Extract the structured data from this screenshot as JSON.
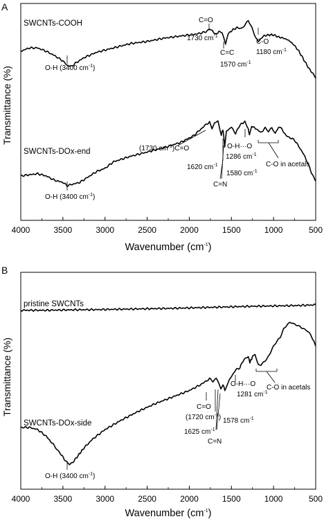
{
  "chart_data": [
    {
      "panel": "A",
      "type": "line",
      "xlabel": "Wavenumber (cm",
      "xlabel_sup": "-1",
      "xlabel_end": ")",
      "ylabel": "Transmittance (%)",
      "xlim": [
        4000,
        500
      ],
      "x_reversed": true,
      "ticks": [
        "4000",
        "3500",
        "3000",
        "2500",
        "2000",
        "1500",
        "1000",
        "500"
      ],
      "tick_values": [
        4000,
        3500,
        3000,
        2500,
        2000,
        1500,
        1000,
        500
      ],
      "grid": false,
      "y_ticks_labeled": false,
      "series": [
        {
          "name": "SWCNTs-COOH",
          "y_units": "relative transmittance (arbitrary, 0 = panel bottom, 100 = panel top)",
          "points": [
            [
              4000,
              78
            ],
            [
              3900,
              79.5
            ],
            [
              3800,
              79.5
            ],
            [
              3700,
              78
            ],
            [
              3600,
              76
            ],
            [
              3500,
              73.5
            ],
            [
              3450,
              71.5
            ],
            [
              3400,
              71
            ],
            [
              3350,
              72.5
            ],
            [
              3250,
              75
            ],
            [
              3100,
              77.5
            ],
            [
              2900,
              79.5
            ],
            [
              2700,
              81.5
            ],
            [
              2500,
              82.5
            ],
            [
              2300,
              84
            ],
            [
              2100,
              85
            ],
            [
              1900,
              86
            ],
            [
              1800,
              87
            ],
            [
              1760,
              88.5
            ],
            [
              1730,
              88
            ],
            [
              1700,
              85.5
            ],
            [
              1650,
              87
            ],
            [
              1610,
              86.5
            ],
            [
              1570,
              81
            ],
            [
              1540,
              86
            ],
            [
              1480,
              88
            ],
            [
              1420,
              89
            ],
            [
              1380,
              88.5
            ],
            [
              1340,
              90
            ],
            [
              1300,
              92
            ],
            [
              1260,
              89
            ],
            [
              1230,
              85.5
            ],
            [
              1180,
              82.5
            ],
            [
              1120,
              85
            ],
            [
              1060,
              85.5
            ],
            [
              1000,
              85.5
            ],
            [
              940,
              84.5
            ],
            [
              880,
              84
            ],
            [
              820,
              83
            ],
            [
              760,
              81
            ],
            [
              700,
              78
            ],
            [
              640,
              74
            ],
            [
              580,
              70
            ],
            [
              520,
              67
            ],
            [
              500,
              65.5
            ]
          ]
        },
        {
          "name": "SWCNTs-DOx-end",
          "y_units": "relative transmittance (arbitrary, 0 = panel bottom, 100 = panel top)",
          "points": [
            [
              4000,
              20.5
            ],
            [
              3900,
              21
            ],
            [
              3800,
              21.5
            ],
            [
              3700,
              20.5
            ],
            [
              3600,
              18.5
            ],
            [
              3500,
              17.5
            ],
            [
              3450,
              16
            ],
            [
              3400,
              16.5
            ],
            [
              3300,
              17.5
            ],
            [
              3200,
              20
            ],
            [
              3100,
              22.5
            ],
            [
              3000,
              24
            ],
            [
              2900,
              27
            ],
            [
              2700,
              29.5
            ],
            [
              2500,
              31.5
            ],
            [
              2300,
              33.5
            ],
            [
              2100,
              36
            ],
            [
              1950,
              39
            ],
            [
              1850,
              42.5
            ],
            [
              1760,
              45.5
            ],
            [
              1730,
              42
            ],
            [
              1700,
              45
            ],
            [
              1660,
              45.5
            ],
            [
              1620,
              39.5
            ],
            [
              1600,
              42
            ],
            [
              1580,
              34
            ],
            [
              1560,
              41
            ],
            [
              1500,
              43
            ],
            [
              1450,
              40
            ],
            [
              1400,
              44
            ],
            [
              1340,
              45.5
            ],
            [
              1300,
              42
            ],
            [
              1286,
              39
            ],
            [
              1260,
              43.5
            ],
            [
              1200,
              42
            ],
            [
              1150,
              40.5
            ],
            [
              1100,
              42.5
            ],
            [
              1060,
              41
            ],
            [
              1020,
              43
            ],
            [
              980,
              40
            ],
            [
              940,
              43
            ],
            [
              900,
              42
            ],
            [
              850,
              39
            ],
            [
              800,
              38
            ],
            [
              750,
              37
            ],
            [
              700,
              34
            ],
            [
              650,
              31
            ],
            [
              600,
              27
            ],
            [
              550,
              22
            ],
            [
              500,
              18
            ]
          ]
        }
      ],
      "annotations": [
        {
          "text": "O-H (3400 cm",
          "sup": "-1",
          "end": ")"
        },
        {
          "text": "C=O"
        },
        {
          "text": "1730 cm",
          "sup": "-1"
        },
        {
          "text": "C=C"
        },
        {
          "text": "1570 cm",
          "sup": "-1"
        },
        {
          "text": "C-O"
        },
        {
          "text": "1180 cm",
          "sup": "-1"
        },
        {
          "text": "O-H (3400 cm",
          "sup": "-1",
          "end": ")"
        },
        {
          "text": "(1730 cm",
          "sup": "-1",
          "end": ")C=O"
        },
        {
          "text": "1620 cm",
          "sup": "-1"
        },
        {
          "text": "1580 cm",
          "sup": "-1"
        },
        {
          "text": "C=N"
        },
        {
          "text": "O-H···O"
        },
        {
          "text": "1286 cm",
          "sup": "-1"
        },
        {
          "text": "C-O in acetals"
        }
      ]
    },
    {
      "panel": "B",
      "type": "line",
      "xlabel": "Wavenumber (cm",
      "xlabel_sup": "-1",
      "xlabel_end": ")",
      "ylabel": "Transmittance (%)",
      "xlim": [
        4000,
        500
      ],
      "x_reversed": true,
      "ticks": [
        "4000",
        "3500",
        "3000",
        "2500",
        "2000",
        "1500",
        "1000",
        "500"
      ],
      "tick_values": [
        4000,
        3500,
        3000,
        2500,
        2000,
        1500,
        1000,
        500
      ],
      "grid": false,
      "y_ticks_labeled": false,
      "series": [
        {
          "name": "pristine SWCNTs",
          "y_units": "relative transmittance (arbitrary, 0 = panel bottom, 100 = panel top)",
          "points": [
            [
              4000,
              82.5
            ],
            [
              3700,
              82.5
            ],
            [
              3400,
              82.7
            ],
            [
              3100,
              82.8
            ],
            [
              2800,
              83
            ],
            [
              2500,
              83.2
            ],
            [
              2200,
              83.4
            ],
            [
              1900,
              83.7
            ],
            [
              1600,
              84
            ],
            [
              1300,
              84.3
            ],
            [
              1000,
              84.5
            ],
            [
              700,
              84.7
            ],
            [
              500,
              85
            ]
          ]
        },
        {
          "name": "SWCNTs-DOx-side",
          "y_units": "relative transmittance (arbitrary, 0 = panel bottom, 100 = panel top)",
          "points": [
            [
              4000,
              28.5
            ],
            [
              3900,
              28.5
            ],
            [
              3800,
              27.5
            ],
            [
              3700,
              24.5
            ],
            [
              3600,
              20
            ],
            [
              3520,
              16
            ],
            [
              3460,
              12.5
            ],
            [
              3420,
              11.5
            ],
            [
              3380,
              12.5
            ],
            [
              3320,
              15.5
            ],
            [
              3250,
              19
            ],
            [
              3150,
              23
            ],
            [
              3000,
              27.5
            ],
            [
              2800,
              32
            ],
            [
              2600,
              36
            ],
            [
              2400,
              39.5
            ],
            [
              2200,
              42.5
            ],
            [
              2000,
              45.5
            ],
            [
              1850,
              48.5
            ],
            [
              1760,
              51
            ],
            [
              1720,
              49.5
            ],
            [
              1680,
              51
            ],
            [
              1650,
              49
            ],
            [
              1625,
              46
            ],
            [
              1600,
              48.5
            ],
            [
              1578,
              45.5
            ],
            [
              1550,
              48.5
            ],
            [
              1500,
              52
            ],
            [
              1450,
              55
            ],
            [
              1400,
              56
            ],
            [
              1350,
              60
            ],
            [
              1300,
              61
            ],
            [
              1281,
              58.5
            ],
            [
              1250,
              61
            ],
            [
              1220,
              62
            ],
            [
              1180,
              57.5
            ],
            [
              1150,
              57
            ],
            [
              1120,
              58.5
            ],
            [
              1080,
              60
            ],
            [
              1040,
              63
            ],
            [
              1000,
              66
            ],
            [
              960,
              68
            ],
            [
              920,
              70
            ],
            [
              880,
              74
            ],
            [
              840,
              76
            ],
            [
              800,
              77
            ],
            [
              760,
              76
            ],
            [
              720,
              75.5
            ],
            [
              680,
              75
            ],
            [
              640,
              74
            ],
            [
              600,
              73
            ],
            [
              560,
              71
            ],
            [
              520,
              68
            ],
            [
              500,
              66
            ]
          ]
        }
      ],
      "annotations": [
        {
          "text": "O-H (3400 cm",
          "sup": "-1",
          "end": ")"
        },
        {
          "text": "C=O"
        },
        {
          "text": "(1720 cm",
          "sup": "-1",
          "end": ")"
        },
        {
          "text": "1625 cm",
          "sup": "-1"
        },
        {
          "text": "1578 cm",
          "sup": "-1"
        },
        {
          "text": "C=N"
        },
        {
          "text": "O-H···O"
        },
        {
          "text": "1281 cm",
          "sup": "-1"
        },
        {
          "text": "C-O in acetals"
        }
      ]
    }
  ]
}
